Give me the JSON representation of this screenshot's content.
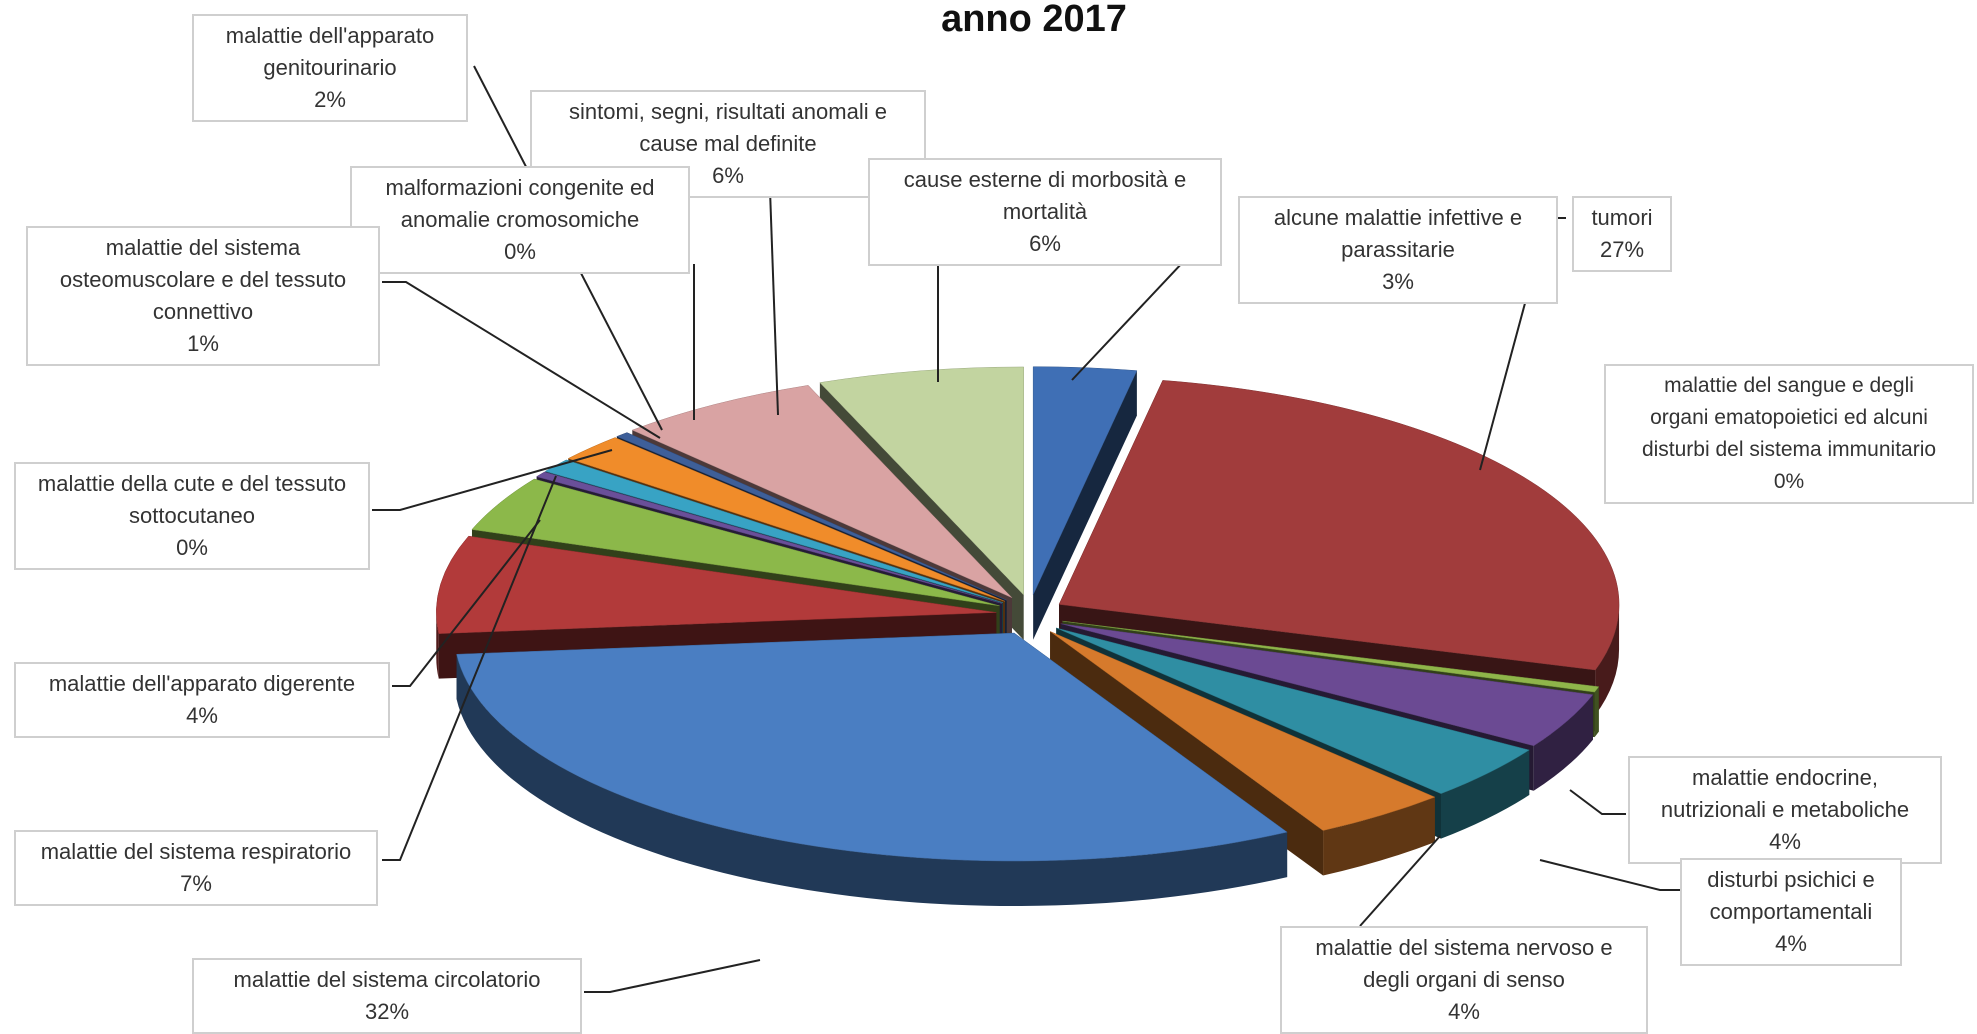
{
  "chart_data": {
    "type": "pie",
    "title": "anno 2017",
    "slices": [
      {
        "label": "alcune malattie infettive e parassitarie",
        "value": 3,
        "pct": "3%",
        "color": "#3f6fb5"
      },
      {
        "label": "tumori",
        "value": 27,
        "pct": "27%",
        "color": "#a13c3c"
      },
      {
        "label": "malattie del sangue e degli organi ematopoietici ed alcuni disturbi del sistema immunitario",
        "value": 0.4,
        "pct": "0%",
        "color": "#8fb54a"
      },
      {
        "label": "malattie endocrine, nutrizionali e metaboliche",
        "value": 4,
        "pct": "4%",
        "color": "#6b4a93"
      },
      {
        "label": "disturbi psichici e comportamentali",
        "value": 4,
        "pct": "4%",
        "color": "#2f8ea3"
      },
      {
        "label": "malattie del sistema nervoso e degli organi di senso",
        "value": 4,
        "pct": "4%",
        "color": "#d67a2c"
      },
      {
        "label": "malattie del sistema circolatorio",
        "value": 32,
        "pct": "32%",
        "color": "#4a7ec2"
      },
      {
        "label": "malattie del sistema respiratorio",
        "value": 7,
        "pct": "7%",
        "color": "#b23a3a"
      },
      {
        "label": "malattie dell'apparato digerente",
        "value": 4,
        "pct": "4%",
        "color": "#8cb84a"
      },
      {
        "label": "malattie della cute e del tessuto sottocutaneo",
        "value": 0.4,
        "pct": "0%",
        "color": "#6a4f99"
      },
      {
        "label": "malattie del sistema osteomuscolare e del tessuto connettivo",
        "value": 1,
        "pct": "1%",
        "color": "#38a3c4"
      },
      {
        "label": "malattie dell'apparato genitourinario",
        "value": 2,
        "pct": "2%",
        "color": "#f08c2a"
      },
      {
        "label": "malformazioni congenite ed anomalie cromosomiche",
        "value": 0.4,
        "pct": "0%",
        "color": "#3e5f99"
      },
      {
        "label": "sintomi, segni, risultati anomali e cause mal definite",
        "value": 6,
        "pct": "6%",
        "color": "#d9a3a3"
      },
      {
        "label": "cause esterne di morbosità e mortalità",
        "value": 6,
        "pct": "6%",
        "color": "#c2d4a0"
      }
    ]
  },
  "labels": [
    {
      "lines": [
        "malattie dell'apparato",
        "genitourinario",
        "2%"
      ]
    },
    {
      "lines": [
        "sintomi, segni, risultati anomali e",
        "cause mal definite",
        "6%"
      ]
    },
    {
      "lines": [
        "malformazioni congenite ed",
        "anomalie cromosomiche",
        "0%"
      ]
    },
    {
      "lines": [
        "cause esterne di morbosità e",
        "mortalità",
        "6%"
      ]
    },
    {
      "lines": [
        "alcune malattie infettive e",
        "parassitarie",
        "3%"
      ]
    },
    {
      "lines": [
        "tumori",
        "27%"
      ]
    },
    {
      "lines": [
        "malattie del sistema",
        "osteomuscolare e del tessuto",
        "connettivo",
        "1%"
      ]
    },
    {
      "lines": [
        "malattie del sangue e degli",
        "organi ematopoietici ed alcuni",
        "disturbi del sistema immunitario",
        "0%"
      ]
    },
    {
      "lines": [
        "malattie della cute e del tessuto",
        "sottocutaneo",
        "0%"
      ]
    },
    {
      "lines": [
        "malattie dell'apparato digerente",
        "4%"
      ]
    },
    {
      "lines": [
        "malattie endocrine,",
        "nutrizionali e metaboliche",
        "4%"
      ]
    },
    {
      "lines": [
        "disturbi psichici e",
        "comportamentali",
        "4%"
      ]
    },
    {
      "lines": [
        "malattie del sistema respiratorio",
        "7%"
      ]
    },
    {
      "lines": [
        "malattie del sistema nervoso e",
        "degli organi di senso",
        "4%"
      ]
    },
    {
      "lines": [
        "malattie del sistema circolatorio",
        "32%"
      ]
    }
  ]
}
